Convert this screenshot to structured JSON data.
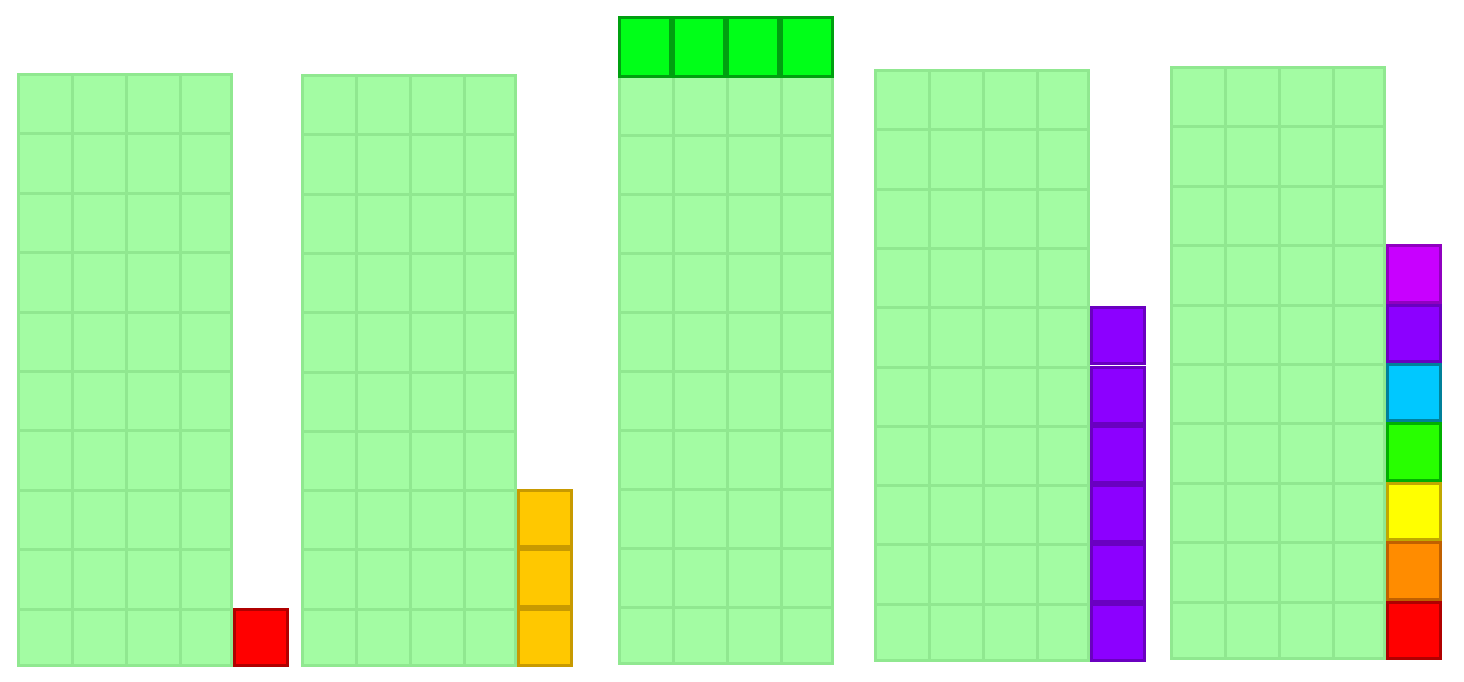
{
  "grid_fill": "#a3fca3",
  "grid_line": "#90e890",
  "groups": [
    {
      "grid_rows": 10,
      "grid_cols": 4,
      "extra_orientation": "column",
      "extra": [
        {
          "fill": "#ff0000",
          "border": "#b00000"
        }
      ]
    },
    {
      "grid_rows": 10,
      "grid_cols": 4,
      "extra_orientation": "column",
      "extra": [
        {
          "fill": "#ffc800",
          "border": "#c89a00"
        },
        {
          "fill": "#ffc800",
          "border": "#c89a00"
        },
        {
          "fill": "#ffc800",
          "border": "#c89a00"
        }
      ]
    },
    {
      "grid_rows": 10,
      "grid_cols": 4,
      "extra_orientation": "row",
      "extra": [
        {
          "fill": "#00ff18",
          "border": "#00a010"
        },
        {
          "fill": "#00ff18",
          "border": "#00a010"
        },
        {
          "fill": "#00ff18",
          "border": "#00a010"
        },
        {
          "fill": "#00ff18",
          "border": "#00a010"
        }
      ]
    },
    {
      "grid_rows": 10,
      "grid_cols": 4,
      "extra_orientation": "column",
      "extra": [
        {
          "fill": "#8c00ff",
          "border": "#6a00c0"
        },
        {
          "fill": "#8c00ff",
          "border": "#6a00c0"
        },
        {
          "fill": "#8c00ff",
          "border": "#6a00c0"
        },
        {
          "fill": "#8c00ff",
          "border": "#6a00c0"
        },
        {
          "fill": "#8c00ff",
          "border": "#6a00c0"
        },
        {
          "fill": "#8c00ff",
          "border": "#6a00c0"
        }
      ]
    },
    {
      "grid_rows": 10,
      "grid_cols": 4,
      "extra_orientation": "column",
      "extra": [
        {
          "fill": "#c800ff",
          "border": "#9000c0"
        },
        {
          "fill": "#8c00ff",
          "border": "#6a00c0"
        },
        {
          "fill": "#00c8ff",
          "border": "#00809a"
        },
        {
          "fill": "#28ff00",
          "border": "#00b000"
        },
        {
          "fill": "#ffff00",
          "border": "#c0a800"
        },
        {
          "fill": "#ff8c00",
          "border": "#c06000"
        },
        {
          "fill": "#ff0000",
          "border": "#b00000"
        }
      ]
    }
  ]
}
